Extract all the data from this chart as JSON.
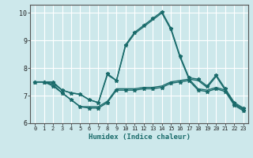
{
  "xlabel": "Humidex (Indice chaleur)",
  "xlim": [
    -0.5,
    23.5
  ],
  "ylim": [
    6,
    10.3
  ],
  "yticks": [
    6,
    7,
    8,
    9,
    10
  ],
  "xticks": [
    0,
    1,
    2,
    3,
    4,
    5,
    6,
    7,
    8,
    9,
    10,
    11,
    12,
    13,
    14,
    15,
    16,
    17,
    18,
    19,
    20,
    21,
    22,
    23
  ],
  "bg_color": "#cde8eb",
  "grid_color": "#ffffff",
  "line_color": "#1a6b6b",
  "lines": [
    {
      "x": [
        0,
        1,
        2,
        3,
        4,
        5,
        6,
        7,
        8,
        9,
        10,
        11,
        12,
        13,
        14,
        15,
        16,
        17,
        18,
        19,
        20,
        21,
        22,
        23
      ],
      "y": [
        7.5,
        7.5,
        7.5,
        7.2,
        7.1,
        7.05,
        6.85,
        6.75,
        7.8,
        7.55,
        8.85,
        9.3,
        9.55,
        9.8,
        10.05,
        9.45,
        8.45,
        7.65,
        7.6,
        7.35,
        7.75,
        7.25,
        6.75,
        6.55
      ],
      "marker": "*",
      "ms": 3.5,
      "lw": 1.0
    },
    {
      "x": [
        0,
        1,
        2,
        3,
        4,
        5,
        6,
        7,
        8,
        9,
        10,
        11,
        12,
        13,
        14,
        15,
        16,
        17,
        18,
        19,
        20,
        21,
        22,
        23
      ],
      "y": [
        7.5,
        7.5,
        7.45,
        7.2,
        7.1,
        7.05,
        6.85,
        6.75,
        7.75,
        7.55,
        8.8,
        9.25,
        9.5,
        9.75,
        10.0,
        9.4,
        8.4,
        7.6,
        7.55,
        7.3,
        7.7,
        7.2,
        6.7,
        6.5
      ],
      "marker": null,
      "ms": 0,
      "lw": 1.0
    },
    {
      "x": [
        0,
        1,
        2,
        3,
        4,
        5,
        6,
        7,
        8,
        9,
        10,
        11,
        12,
        13,
        14,
        15,
        16,
        17,
        18,
        19,
        20,
        21,
        22,
        23
      ],
      "y": [
        7.5,
        7.5,
        7.35,
        7.1,
        6.85,
        6.6,
        6.55,
        6.55,
        6.75,
        7.2,
        7.2,
        7.2,
        7.25,
        7.25,
        7.3,
        7.45,
        7.5,
        7.55,
        7.2,
        7.15,
        7.25,
        7.15,
        6.65,
        6.45
      ],
      "marker": "*",
      "ms": 3.5,
      "lw": 1.0
    },
    {
      "x": [
        0,
        1,
        2,
        3,
        4,
        5,
        6,
        7,
        8,
        9,
        10,
        11,
        12,
        13,
        14,
        15,
        16,
        17,
        18,
        19,
        20,
        21,
        22,
        23
      ],
      "y": [
        7.5,
        7.5,
        7.4,
        7.1,
        6.85,
        6.6,
        6.6,
        6.6,
        6.8,
        7.25,
        7.25,
        7.25,
        7.3,
        7.3,
        7.35,
        7.5,
        7.55,
        7.6,
        7.25,
        7.2,
        7.3,
        7.2,
        6.7,
        6.5
      ],
      "marker": null,
      "ms": 0,
      "lw": 1.0
    }
  ]
}
